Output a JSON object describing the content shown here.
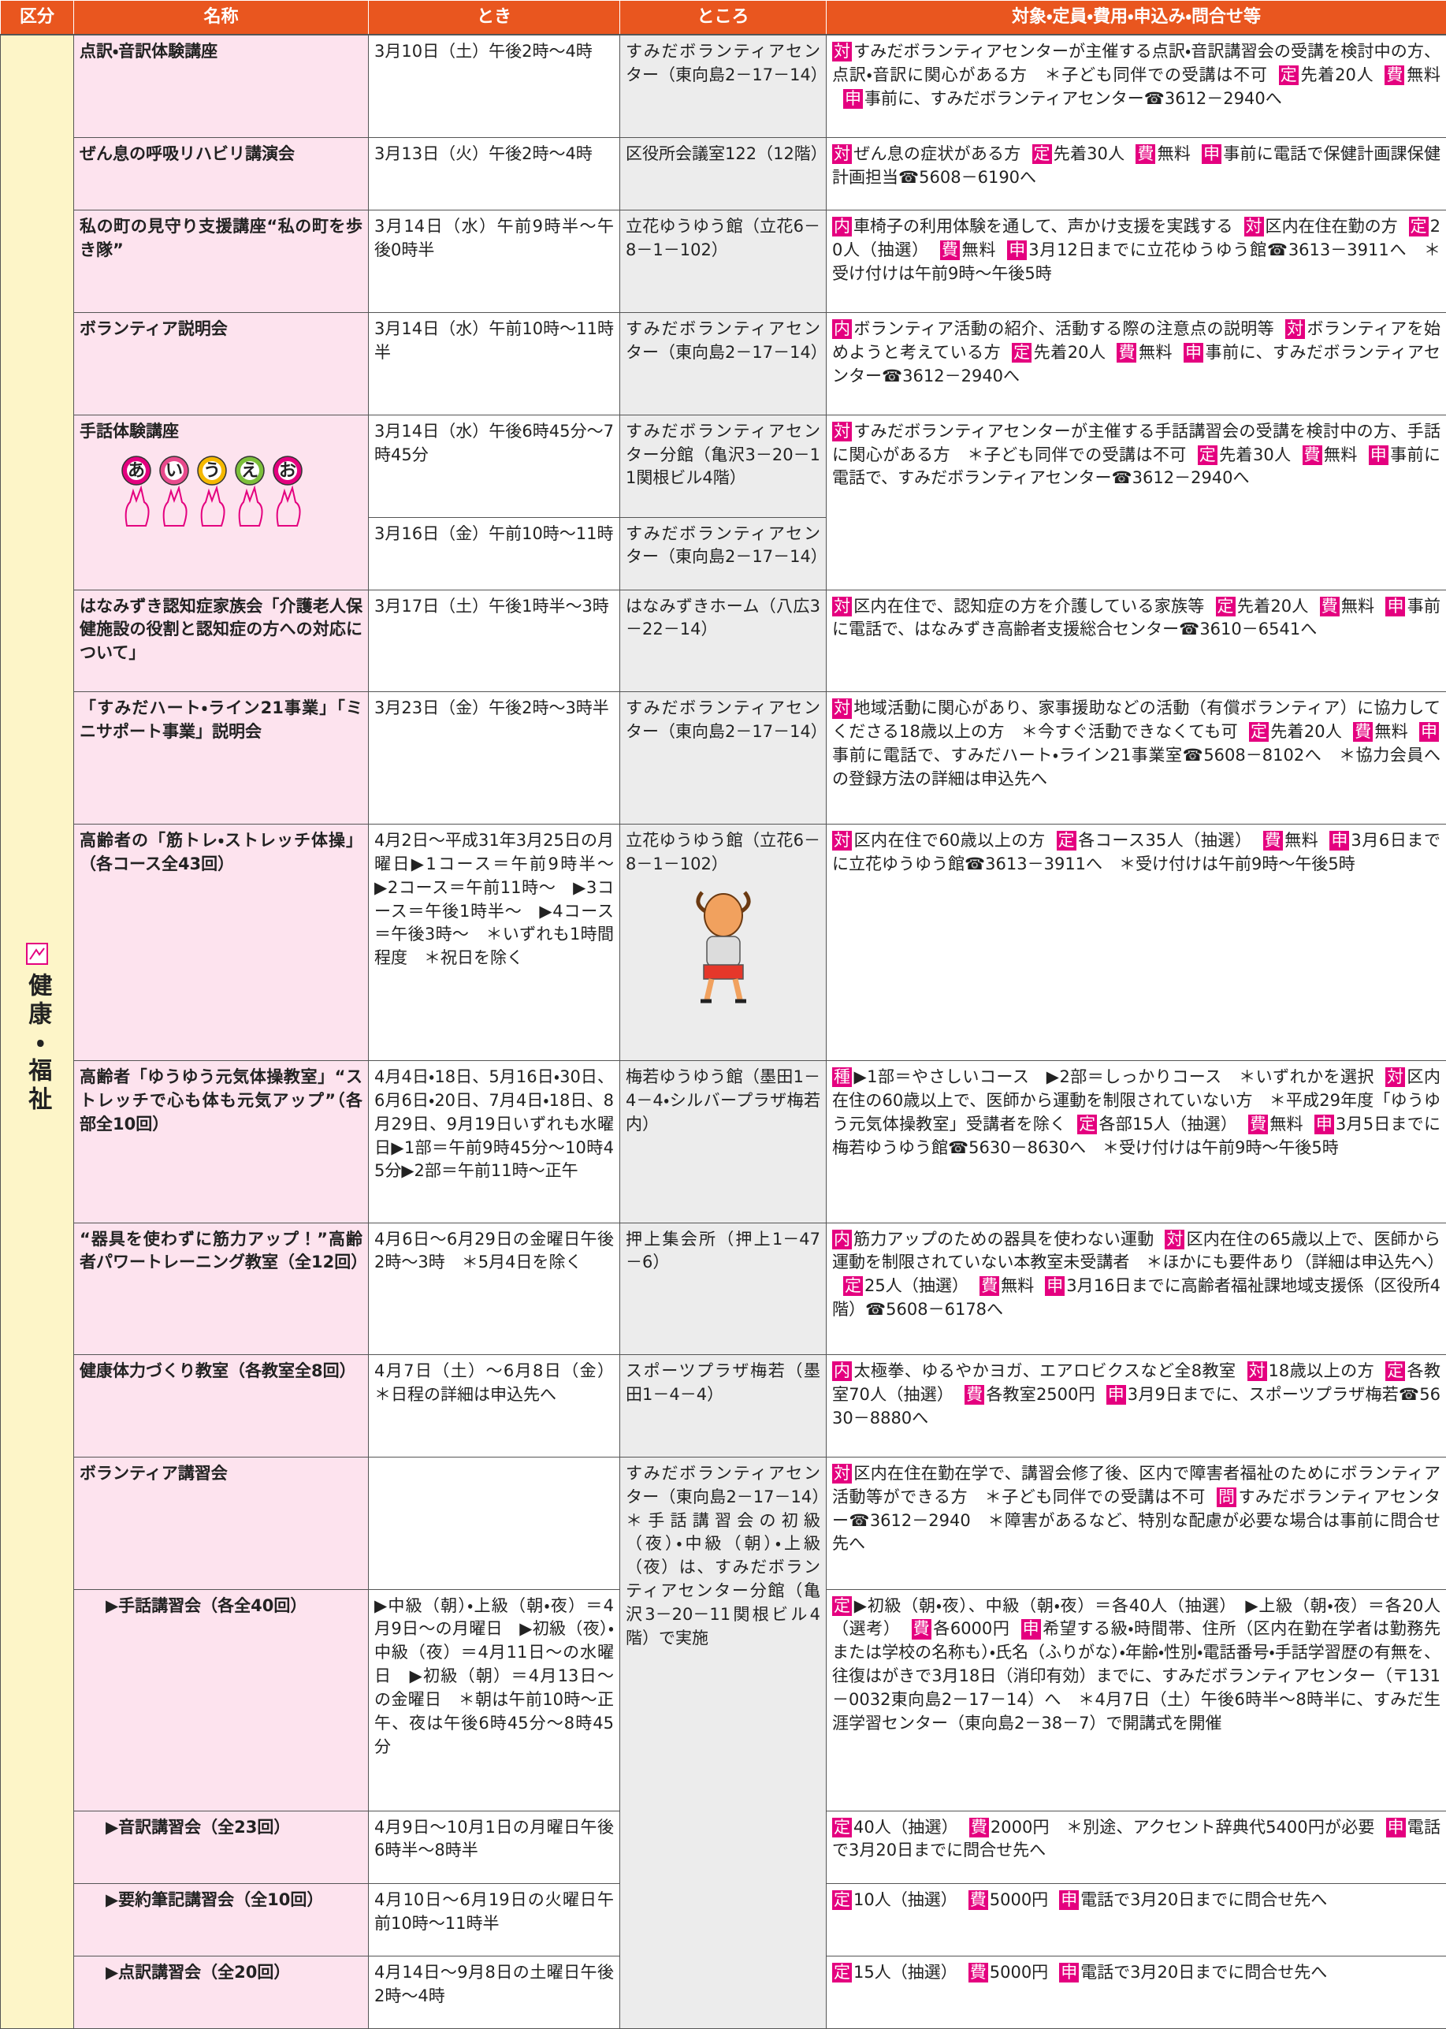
{
  "header": [
    "区分",
    "名称",
    "とき",
    "ところ",
    "対象・定員・費用・申込み・問合せ等"
  ],
  "category": "健康・福祉",
  "illustration_text": [
    "あ",
    "い",
    "う",
    "え",
    "お"
  ],
  "rows": [
    {
      "name": "点訳・音訳体験講座",
      "time": "3月10日（土）午後2時～4時",
      "place": "すみだボランティアセンター（東向島2－17－14）",
      "details": [
        {
          "tag": "対",
          "text": "すみだボランティアセンターが主催する点訳・音訳講習会の受講を検討中の方、点訳・音訳に関心がある方　＊子ども同伴での受講は不可"
        },
        {
          "tag": "定",
          "text": "先着20人"
        },
        {
          "tag": "費",
          "text": "無料"
        },
        {
          "tag": "申",
          "text": "事前に、すみだボランティアセンター☎3612－2940へ"
        }
      ]
    },
    {
      "name": "ぜん息の呼吸リハビリ講演会",
      "time": "3月13日（火）午後2時～4時",
      "place": "区役所会議室122（12階）",
      "details": [
        {
          "tag": "対",
          "text": "ぜん息の症状がある方"
        },
        {
          "tag": "定",
          "text": "先着30人"
        },
        {
          "tag": "費",
          "text": "無料"
        },
        {
          "tag": "申",
          "text": "事前に電話で保健計画課保健計画担当☎5608－6190へ"
        }
      ]
    },
    {
      "name": "私の町の見守り支援講座“私の町を歩き隊”",
      "time": "3月14日（水）午前9時半～午後0時半",
      "place": "立花ゆうゆう館（立花6－8－1－102）",
      "details": [
        {
          "tag": "内",
          "text": "車椅子の利用体験を通して、声かけ支援を実践する"
        },
        {
          "tag": "対",
          "text": "区内在住在勤の方"
        },
        {
          "tag": "定",
          "text": "20人（抽選）"
        },
        {
          "tag": "費",
          "text": "無料"
        },
        {
          "tag": "申",
          "text": "3月12日までに立花ゆうゆう館☎3613－3911へ　＊受け付けは午前9時～午後5時"
        }
      ]
    },
    {
      "name": "ボランティア説明会",
      "time": "3月14日（水）午前10時～11時半",
      "place": "すみだボランティアセンター（東向島2－17－14）",
      "details": [
        {
          "tag": "内",
          "text": "ボランティア活動の紹介、活動する際の注意点の説明等"
        },
        {
          "tag": "対",
          "text": "ボランティアを始めようと考えている方"
        },
        {
          "tag": "定",
          "text": "先着20人"
        },
        {
          "tag": "費",
          "text": "無料"
        },
        {
          "tag": "申",
          "text": "事前に、すみだボランティアセンター☎3612－2940へ"
        }
      ]
    },
    {
      "name": "手話体験講座",
      "sessions": [
        {
          "time": "3月14日（水）午後6時45分～7時45分",
          "place": "すみだボランティアセンター分館（亀沢3－20－11関根ビル4階）"
        },
        {
          "time": "3月16日（金）午前10時～11時",
          "place": "すみだボランティアセンター（東向島2－17－14）"
        }
      ],
      "details": [
        {
          "tag": "対",
          "text": "すみだボランティアセンターが主催する手話講習会の受講を検討中の方、手話に関心がある方　＊子ども同伴での受講は不可"
        },
        {
          "tag": "定",
          "text": "先着30人"
        },
        {
          "tag": "費",
          "text": "無料"
        },
        {
          "tag": "申",
          "text": "事前に電話で、すみだボランティアセンター☎3612－2940へ"
        }
      ]
    },
    {
      "name": "はなみずき認知症家族会「介護老人保健施設の役割と認知症の方への対応について」",
      "time": "3月17日（土）午後1時半～3時",
      "place": "はなみずきホーム（八広3－22－14）",
      "details": [
        {
          "tag": "対",
          "text": "区内在住で、認知症の方を介護している家族等"
        },
        {
          "tag": "定",
          "text": "先着20人"
        },
        {
          "tag": "費",
          "text": "無料"
        },
        {
          "tag": "申",
          "text": "事前に電話で、はなみずき高齢者支援総合センター☎3610－6541へ"
        }
      ]
    },
    {
      "name": "「すみだハート・ライン21事業」「ミニサポート事業」説明会",
      "time": "3月23日（金）午後2時～3時半",
      "place": "すみだボランティアセンター（東向島2－17－14）",
      "details": [
        {
          "tag": "対",
          "text": "地域活動に関心があり、家事援助などの活動（有償ボランティア）に協力してくださる18歳以上の方　＊今すぐ活動できなくても可"
        },
        {
          "tag": "定",
          "text": "先着20人"
        },
        {
          "tag": "費",
          "text": "無料"
        },
        {
          "tag": "申",
          "text": "事前に電話で、すみだハート・ライン21事業室☎5608－8102へ　＊協力会員への登録方法の詳細は申込先へ"
        }
      ]
    },
    {
      "name": "高齢者の「筋トレ・ストレッチ体操」（各コース全43回）",
      "time": "4月2日～平成31年3月25日の月曜日▶1コース＝午前9時半～　▶2コース＝午前11時～　▶3コース＝午後1時半～　▶4コース＝午後3時～　＊いずれも1時間程度　＊祝日を除く",
      "place": "立花ゆうゆう館（立花6－8－1－102）",
      "details": [
        {
          "tag": "対",
          "text": "区内在住で60歳以上の方"
        },
        {
          "tag": "定",
          "text": "各コース35人（抽選）"
        },
        {
          "tag": "費",
          "text": "無料"
        },
        {
          "tag": "申",
          "text": "3月6日までに立花ゆうゆう館☎3613－3911へ　＊受け付けは午前9時～午後5時"
        }
      ]
    },
    {
      "name": "高齢者「ゆうゆう元気体操教室」“ストレッチで心も体も元気アップ”（各部全10回）",
      "time": "4月4日・18日、5月16日・30日、6月6日・20日、7月4日・18日、8月29日、9月19日いずれも水曜日▶1部＝午前9時45分～10時45分▶2部＝午前11時～正午",
      "place": "梅若ゆうゆう館（墨田1－4－4・シルバープラザ梅若内）",
      "details": [
        {
          "tag": "種",
          "text": "▶1部＝やさしいコース　▶2部＝しっかりコース　＊いずれかを選択"
        },
        {
          "tag": "対",
          "text": "区内在住の60歳以上で、医師から運動を制限されていない方　＊平成29年度「ゆうゆう元気体操教室」受講者を除く"
        },
        {
          "tag": "定",
          "text": "各部15人（抽選）"
        },
        {
          "tag": "費",
          "text": "無料"
        },
        {
          "tag": "申",
          "text": "3月5日までに梅若ゆうゆう館☎5630－8630へ　＊受け付けは午前9時～午後5時"
        }
      ]
    },
    {
      "name": "“器具を使わずに筋力アップ！”高齢者パワートレーニング教室（全12回）",
      "time": "4月6日～6月29日の金曜日午後2時～3時　＊5月4日を除く",
      "place": "押上集会所（押上1－47－6）",
      "details": [
        {
          "tag": "内",
          "text": "筋力アップのための器具を使わない運動"
        },
        {
          "tag": "対",
          "text": "区内在住の65歳以上で、医師から運動を制限されていない本教室未受講者　＊ほかにも要件あり（詳細は申込先へ）"
        },
        {
          "tag": "定",
          "text": "25人（抽選）"
        },
        {
          "tag": "費",
          "text": "無料"
        },
        {
          "tag": "申",
          "text": "3月16日までに高齢者福祉課地域支援係（区役所4階）☎5608－6178へ"
        }
      ]
    },
    {
      "name": "健康体力づくり教室（各教室全8回）",
      "time": "4月7日（土）～6月8日（金）＊日程の詳細は申込先へ",
      "place": "スポーツプラザ梅若（墨田1－4－4）",
      "details": [
        {
          "tag": "内",
          "text": "太極拳、ゆるやかヨガ、エアロビクスなど全8教室"
        },
        {
          "tag": "対",
          "text": "18歳以上の方"
        },
        {
          "tag": "定",
          "text": "各教室70人（抽選）"
        },
        {
          "tag": "費",
          "text": "各教室2500円"
        },
        {
          "tag": "申",
          "text": "3月9日までに、スポーツプラザ梅若☎5630－8880へ"
        }
      ]
    },
    {
      "name": "ボランティア講習会",
      "place": "すみだボランティアセンター（東向島2－17－14）　＊手話講習会の初級（夜）・中級（朝）・上級（夜）は、すみだボランティアセンター分館（亀沢3－20－11関根ビル4階）で実施",
      "details": [
        {
          "tag": "対",
          "text": "区内在住在勤在学で、講習会修了後、区内で障害者福祉のためにボランティア活動等ができる方　＊子ども同伴での受講は不可"
        },
        {
          "tag": "問",
          "text": "すみだボランティアセンター☎3612－2940　＊障害があるなど、特別な配慮が必要な場合は事前に問合せ先へ"
        }
      ],
      "subrows": [
        {
          "name": "▶手話講習会（各全40回）",
          "time": "▶中級（朝）・上級（朝・夜）＝4月9日～の月曜日　▶初級（夜）・中級（夜）＝4月11日～の水曜日　▶初級（朝）＝4月13日～の金曜日　＊朝は午前10時～正午、夜は午後6時45分～8時45分",
          "details": [
            {
              "tag": "定",
              "text": "▶初級（朝・夜）、中級（朝・夜）＝各40人（抽選）　▶上級（朝・夜）＝各20人（選考）"
            },
            {
              "tag": "費",
              "text": "各6000円"
            },
            {
              "tag": "申",
              "text": "希望する級・時間帯、住所（区内在勤在学者は勤務先または学校の名称も）・氏名（ふりがな）・年齢・性別・電話番号・手話学習歴の有無を、往復はがきで3月18日（消印有効）までに、すみだボランティアセンター（〒131－0032東向島2－17－14）へ　＊4月7日（土）午後6時半～8時半に、すみだ生涯学習センター（東向島2－38－7）で開講式を開催"
            }
          ]
        },
        {
          "name": "▶音訳講習会（全23回）",
          "time": "4月9日～10月1日の月曜日午後6時半～8時半",
          "details": [
            {
              "tag": "定",
              "text": "40人（抽選）"
            },
            {
              "tag": "費",
              "text": "2000円　＊別途、アクセント辞典代5400円が必要"
            },
            {
              "tag": "申",
              "text": "電話で3月20日までに問合せ先へ"
            }
          ]
        },
        {
          "name": "▶要約筆記講習会（全10回）",
          "time": "4月10日～6月19日の火曜日午前10時～11時半",
          "details": [
            {
              "tag": "定",
              "text": "10人（抽選）"
            },
            {
              "tag": "費",
              "text": "5000円"
            },
            {
              "tag": "申",
              "text": "電話で3月20日までに問合せ先へ"
            }
          ]
        },
        {
          "name": "▶点訳講習会（全20回）",
          "time": "4月14日～9月8日の土曜日午後2時～4時",
          "details": [
            {
              "tag": "定",
              "text": "15人（抽選）"
            },
            {
              "tag": "費",
              "text": "5000円"
            },
            {
              "tag": "申",
              "text": "電話で3月20日までに問合せ先へ"
            }
          ]
        }
      ]
    }
  ]
}
